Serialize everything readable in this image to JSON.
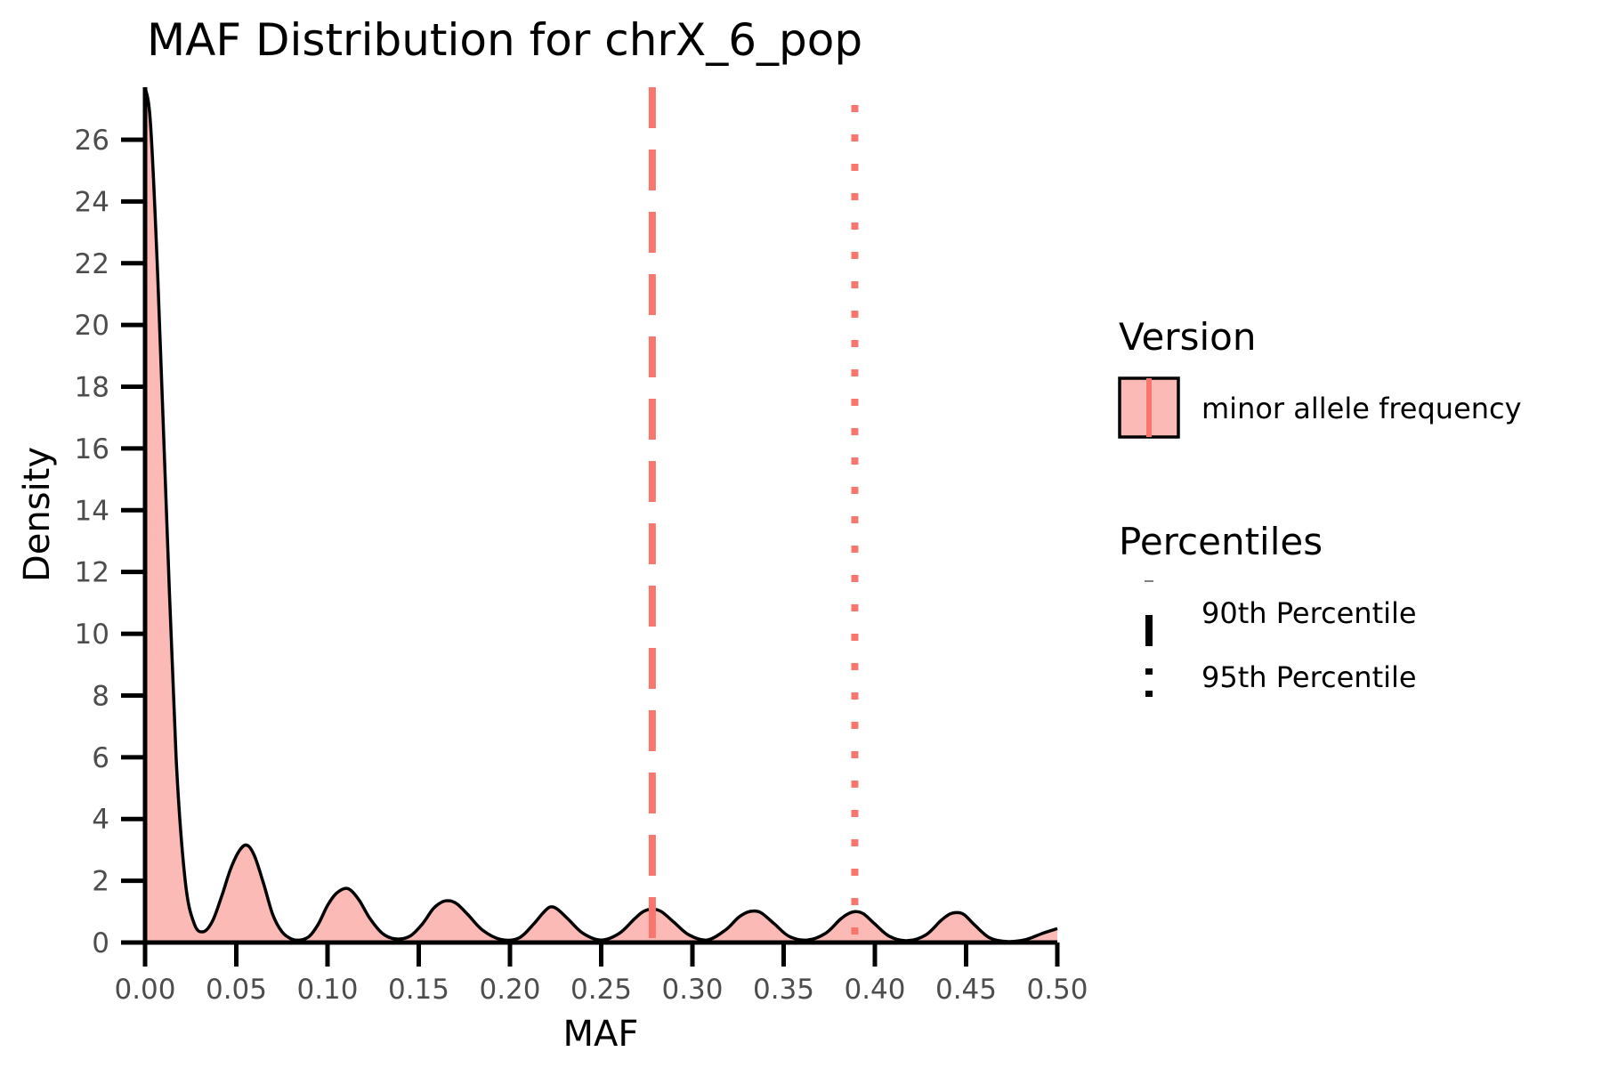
{
  "chart_data": {
    "type": "area",
    "title": "MAF Distribution for chrX_6_pop",
    "xlabel": "MAF",
    "ylabel": "Density",
    "xlim": [
      0,
      0.5
    ],
    "ylim": [
      0,
      27.7
    ],
    "x_ticks": [
      "0.00",
      "0.05",
      "0.10",
      "0.15",
      "0.20",
      "0.25",
      "0.30",
      "0.35",
      "0.40",
      "0.45",
      "0.50"
    ],
    "y_ticks": [
      "0",
      "2",
      "4",
      "6",
      "8",
      "10",
      "12",
      "14",
      "16",
      "18",
      "20",
      "22",
      "24",
      "26"
    ],
    "grid": false,
    "legend_position": "right",
    "series": [
      {
        "name": "minor allele frequency",
        "fill_color": "#f8766d",
        "fill_opacity": 0.5,
        "line_color": "#000000",
        "x": [
          0.0,
          0.003,
          0.007,
          0.012,
          0.017,
          0.022,
          0.027,
          0.032,
          0.037,
          0.042,
          0.047,
          0.052,
          0.056,
          0.06,
          0.065,
          0.07,
          0.075,
          0.08,
          0.085,
          0.09,
          0.095,
          0.1,
          0.105,
          0.111,
          0.117,
          0.123,
          0.13,
          0.137,
          0.145,
          0.152,
          0.158,
          0.163,
          0.167,
          0.171,
          0.177,
          0.185,
          0.195,
          0.205,
          0.213,
          0.218,
          0.222,
          0.226,
          0.232,
          0.24,
          0.25,
          0.26,
          0.268,
          0.273,
          0.278,
          0.283,
          0.29,
          0.298,
          0.308,
          0.318,
          0.325,
          0.33,
          0.334,
          0.338,
          0.345,
          0.353,
          0.363,
          0.373,
          0.381,
          0.386,
          0.39,
          0.394,
          0.4,
          0.408,
          0.418,
          0.428,
          0.436,
          0.441,
          0.445,
          0.449,
          0.455,
          0.463,
          0.473,
          0.483,
          0.492,
          0.5
        ],
        "y": [
          27.7,
          26.5,
          21.5,
          13.5,
          6.0,
          2.0,
          0.6,
          0.35,
          0.7,
          1.5,
          2.4,
          3.0,
          3.15,
          2.8,
          1.9,
          0.9,
          0.35,
          0.12,
          0.08,
          0.2,
          0.6,
          1.2,
          1.6,
          1.75,
          1.4,
          0.8,
          0.3,
          0.12,
          0.2,
          0.6,
          1.1,
          1.32,
          1.35,
          1.25,
          0.9,
          0.4,
          0.1,
          0.15,
          0.6,
          0.95,
          1.15,
          1.08,
          0.75,
          0.3,
          0.08,
          0.3,
          0.75,
          1.0,
          1.08,
          1.0,
          0.65,
          0.25,
          0.08,
          0.4,
          0.8,
          0.98,
          1.02,
          0.95,
          0.6,
          0.2,
          0.08,
          0.3,
          0.75,
          0.95,
          1.0,
          0.92,
          0.6,
          0.2,
          0.06,
          0.25,
          0.7,
          0.92,
          0.97,
          0.9,
          0.55,
          0.15,
          0.03,
          0.1,
          0.3,
          0.45
        ]
      }
    ],
    "percentile_lines": [
      {
        "name": "90th Percentile",
        "x": 0.278,
        "dash": "dashed",
        "color": "#f8766d"
      },
      {
        "name": "95th Percentile",
        "x": 0.389,
        "dash": "dotted",
        "color": "#f8766d"
      }
    ],
    "legend": {
      "version_title": "Version",
      "version_item": "minor allele frequency",
      "percentiles_title": "Percentiles",
      "percentile_items": [
        "90th Percentile",
        "95th Percentile"
      ]
    }
  }
}
